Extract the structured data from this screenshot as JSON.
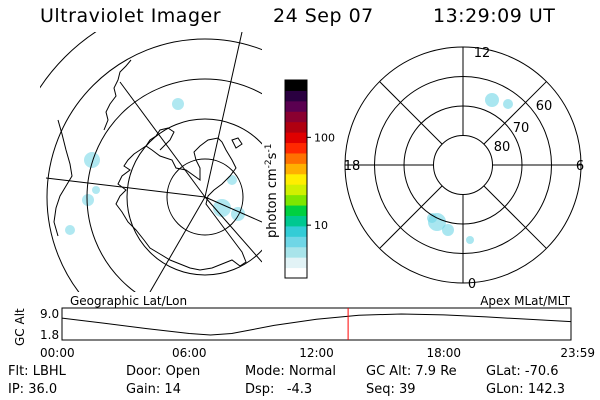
{
  "header": {
    "instrument": "Ultraviolet Imager",
    "date": "24 Sep 07",
    "time": "13:29:09 UT"
  },
  "colors": {
    "ink": "#000000",
    "cursor": "#ff0000",
    "aurora": "#6fd6e6"
  },
  "chart_data": [
    {
      "type": "map",
      "label": "Geographic Lat/Lon",
      "projection": "orthographic-south-polar",
      "features": [
        "coastline-antarctica",
        "latitude-circles",
        "longitude-meridians",
        "auroral-oval"
      ]
    },
    {
      "type": "heatmap",
      "colorbar": {
        "label": "photon cm",
        "label_exp1": "-2",
        "label_mid": "s",
        "label_exp2": "-1",
        "scale": "log",
        "ticks": [
          {
            "value": 100,
            "label": "100"
          },
          {
            "value": 10,
            "label": "10"
          }
        ],
        "range": [
          2.5,
          450
        ],
        "colors": [
          "#ffffff",
          "#e2f3f6",
          "#a8e4ea",
          "#6fd6e6",
          "#33ccd6",
          "#00c890",
          "#00d040",
          "#7ee600",
          "#d0f000",
          "#ffee00",
          "#ffb000",
          "#ff7000",
          "#ff2800",
          "#e00000",
          "#b00010",
          "#8a0030",
          "#5a0050",
          "#2a0040",
          "#000000"
        ]
      }
    },
    {
      "type": "polar",
      "label": "Apex MLat/MLT",
      "mlt_labels": [
        {
          "mlt": 12,
          "text": "12"
        },
        {
          "mlt": 18,
          "text": "18"
        },
        {
          "mlt": 6,
          "text": "6"
        },
        {
          "mlt": 0,
          "text": "0"
        }
      ],
      "lat_rings": [
        50,
        60,
        70,
        80
      ],
      "lat_labels": [
        {
          "lat": 60,
          "text": "60"
        },
        {
          "lat": 70,
          "text": "70"
        },
        {
          "lat": 80,
          "text": "80"
        }
      ]
    },
    {
      "type": "line",
      "title": "Geographic Lat/Lon",
      "title_right": "Apex MLat/MLT",
      "ylabel": "GC Alt",
      "yticks": [
        {
          "value": 9.0,
          "label": "9.0"
        },
        {
          "value": 1.8,
          "label": "1.8"
        }
      ],
      "ylim": [
        1.8,
        9.0
      ],
      "xlim": [
        0,
        24
      ],
      "xticks": [
        {
          "value": 0,
          "label": "00:00"
        },
        {
          "value": 6,
          "label": "06:00"
        },
        {
          "value": 12,
          "label": "12:00"
        },
        {
          "value": 18,
          "label": "18:00"
        },
        {
          "value": 24,
          "label": "23:59"
        }
      ],
      "x": [
        0,
        2,
        4,
        6,
        7,
        8,
        9,
        10,
        12,
        14,
        16,
        18,
        20,
        22,
        24
      ],
      "y": [
        7.6,
        5.8,
        4.0,
        2.3,
        1.8,
        2.3,
        3.7,
        5.1,
        7.2,
        8.6,
        9.0,
        8.7,
        8.0,
        7.2,
        6.4
      ],
      "cursor_time": 13.49
    }
  ],
  "footer": {
    "row1": [
      {
        "label": "Flt:",
        "value": "LBHL"
      },
      {
        "label": "Door:",
        "value": "Open"
      },
      {
        "label": "Mode:",
        "value": "Normal"
      },
      {
        "label": "GC Alt:",
        "value": "7.9 Re"
      },
      {
        "label": "GLat:",
        "value": "-70.6"
      }
    ],
    "row2": [
      {
        "label": "IP:",
        "value": "36.0"
      },
      {
        "label": "Gain:",
        "value": "14"
      },
      {
        "label": "Dsp:",
        "value": "  -4.3"
      },
      {
        "label": "Seq:",
        "value": "39"
      },
      {
        "label": "GLon:",
        "value": "142.3"
      }
    ]
  }
}
